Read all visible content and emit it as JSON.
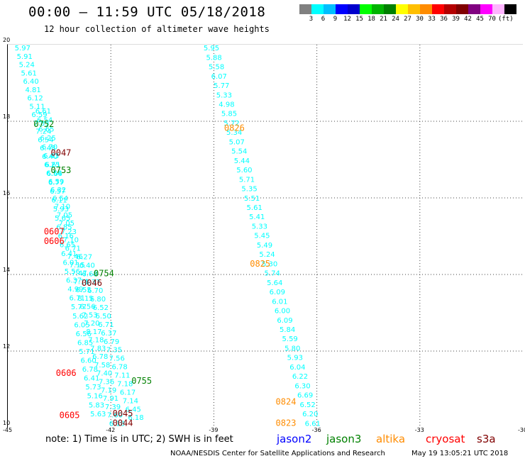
{
  "header": {
    "title": "00:00 – 11:59 UTC 05/18/2018",
    "subtitle": "12 hour collection of altimeter wave heights"
  },
  "legend": {
    "colors": [
      "#808080",
      "#00ffff",
      "#00bfff",
      "#0000ff",
      "#0000cd",
      "#00ff00",
      "#00b400",
      "#008000",
      "#ffff00",
      "#ffbf00",
      "#ff8c00",
      "#ff0000",
      "#b40000",
      "#800000",
      "#800080",
      "#ff00ff",
      "#ffb4ff",
      "#000000"
    ],
    "labels": [
      "3",
      "6",
      "9",
      "12",
      "15",
      "18",
      "21",
      "24",
      "27",
      "30",
      "33",
      "36",
      "39",
      "42",
      "45",
      "70",
      "(ft)"
    ]
  },
  "chart_data": {
    "type": "scatter",
    "xlim": [
      -45,
      -30
    ],
    "ylim": [
      10,
      20
    ],
    "x_ticks": [
      "-45",
      "-42",
      "-39",
      "-36",
      "-33",
      "-30"
    ],
    "y_ticks": [
      "20",
      "18",
      "16",
      "14",
      "12",
      "10"
    ],
    "grid": true,
    "tracks": [
      {
        "name": "track-a",
        "color": "#00ffff",
        "start": [
          -44.8,
          19.85
        ],
        "end": [
          -42.05,
          10.05
        ],
        "values": [
          "5.97",
          "5.91",
          "5.24",
          "5.61",
          "6.40",
          "4.81",
          "6.12",
          "5.11",
          "6.59",
          "7.83",
          "7.24",
          "6.54",
          "6.48",
          "6.40",
          "6.25",
          "6.54",
          "6.59",
          "6.32",
          "6.54",
          "7.10",
          "7.05",
          "7.05",
          "7.23",
          "7.10",
          "6.71",
          "7.46",
          "7.15",
          "7.47",
          "7.11",
          "6.55",
          "8.15",
          "6.56",
          "7.53",
          "7.20",
          "8.17",
          "7.18",
          "7.83",
          "6.78",
          "7.58",
          "7.40",
          "7.36",
          "7.19",
          "7.91",
          "7.39",
          "7.60",
          "6.18"
        ]
      },
      {
        "name": "track-b",
        "color": "#00ffff",
        "start": [
          -44.2,
          18.2
        ],
        "end": [
          -42.6,
          10.3
        ],
        "values": [
          "6.61",
          "6.54",
          "6.65",
          "6.25",
          "6.70",
          "6.43",
          "6.61",
          "6.66",
          "6.77",
          "6.57",
          "6.11",
          "5.93",
          "5.65",
          "6.85",
          "6.16",
          "6.65",
          "6.41",
          "6.01",
          "5.56",
          "6.37",
          "4.99",
          "6.71",
          "5.77",
          "5.62",
          "6.05",
          "6.56",
          "6.85",
          "5.71",
          "6.60",
          "6.78",
          "6.41",
          "5.73",
          "5.16",
          "5.83",
          "5.63"
        ]
      },
      {
        "name": "track-c",
        "color": "#00ffff",
        "start": [
          -43.0,
          14.4
        ],
        "end": [
          -41.5,
          10.2
        ],
        "values": [
          "6.27",
          "6.40",
          "6.68",
          "6.37",
          "6.70",
          "6.80",
          "6.52",
          "6.50",
          "6.71",
          "6.37",
          "6.79",
          "7.35",
          "7.56",
          "6.78",
          "7.11",
          "7.18",
          "6.17",
          "7.14",
          "6.45",
          "6.18"
        ]
      },
      {
        "name": "track-d",
        "color": "#00ffff",
        "start": [
          -39.3,
          19.85
        ],
        "end": [
          -36.35,
          10.05
        ],
        "values": [
          "5.95",
          "5.88",
          "5.58",
          "6.07",
          "5.77",
          "5.33",
          "4.98",
          "5.85",
          "5.72",
          "5.34",
          "5.07",
          "5.54",
          "5.44",
          "5.60",
          "5.71",
          "5.35",
          "5.51",
          "5.61",
          "5.41",
          "5.33",
          "5.45",
          "5.49",
          "5.24",
          "5.30",
          "5.74",
          "5.64",
          "6.09",
          "6.01",
          "6.00",
          "6.09",
          "5.84",
          "5.59",
          "5.80",
          "5.93",
          "6.04",
          "6.22",
          "6.30",
          "6.69",
          "6.52",
          "6.20",
          "6.61"
        ]
      }
    ],
    "time_labels": [
      {
        "text": "0752",
        "color": "#008000",
        "x": -44.25,
        "y": 17.85
      },
      {
        "text": "0753",
        "color": "#008000",
        "x": -43.75,
        "y": 16.65
      },
      {
        "text": "0047",
        "color": "#800000",
        "x": -43.75,
        "y": 17.1
      },
      {
        "text": "0607",
        "color": "#ff0000",
        "x": -43.95,
        "y": 15.05
      },
      {
        "text": "0606",
        "color": "#ff0000",
        "x": -43.95,
        "y": 14.8
      },
      {
        "text": "0754",
        "color": "#008000",
        "x": -42.5,
        "y": 13.95
      },
      {
        "text": "0046",
        "color": "#800000",
        "x": -42.85,
        "y": 13.7
      },
      {
        "text": "0606",
        "color": "#ff0000",
        "x": -43.6,
        "y": 11.35
      },
      {
        "text": "0755",
        "color": "#008000",
        "x": -41.4,
        "y": 11.15
      },
      {
        "text": "0605",
        "color": "#ff0000",
        "x": -43.5,
        "y": 10.25
      },
      {
        "text": "0045",
        "color": "#800000",
        "x": -41.95,
        "y": 10.3
      },
      {
        "text": "0044",
        "color": "#800000",
        "x": -41.95,
        "y": 10.05
      },
      {
        "text": "0826",
        "color": "#ff8c00",
        "x": -38.7,
        "y": 17.75
      },
      {
        "text": "0825",
        "color": "#ff8c00",
        "x": -37.95,
        "y": 14.2
      },
      {
        "text": "0824",
        "color": "#ff8c00",
        "x": -37.2,
        "y": 10.6
      },
      {
        "text": "0823",
        "color": "#ff8c00",
        "x": -37.2,
        "y": 10.05
      }
    ]
  },
  "footer": {
    "note": "note: 1) Time is in UTC; 2) SWH is in feet",
    "satellites": [
      {
        "label": "jason2",
        "color": "#0000ff"
      },
      {
        "label": "jason3",
        "color": "#008000"
      },
      {
        "label": "altika",
        "color": "#ff8c00"
      },
      {
        "label": "cryosat",
        "color": "#ff0000"
      },
      {
        "label": "s3a",
        "color": "#800000"
      }
    ],
    "credit": "NOAA/NESDIS Center for Satellite Applications and Research",
    "timestamp": "May 19 13:05:21 UTC 2018"
  }
}
